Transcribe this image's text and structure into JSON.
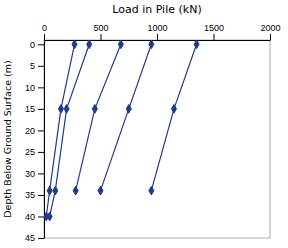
{
  "chart_data": {
    "type": "line",
    "xlabel": "Load in Pile (kN)",
    "ylabel": "Depth Below Ground Surface (m)",
    "xlim": [
      0,
      2000
    ],
    "ylim": [
      45,
      -1
    ],
    "xticks": [
      0,
      500,
      1000,
      1500,
      2000
    ],
    "yticks": [
      0,
      5,
      10,
      15,
      20,
      25,
      30,
      35,
      40,
      45
    ],
    "color": "#1F3A8F",
    "marker": "diamond",
    "grid": false,
    "series": [
      {
        "x": [
          270,
          150,
          50,
          20
        ],
        "values": [
          0,
          15,
          34,
          40
        ]
      },
      {
        "x": [
          400,
          200,
          100,
          50
        ],
        "values": [
          0,
          15,
          34,
          40
        ]
      },
      {
        "x": [
          680,
          450,
          280
        ],
        "values": [
          0,
          15,
          34
        ]
      },
      {
        "x": [
          950,
          750,
          500
        ],
        "values": [
          0,
          15,
          34
        ]
      },
      {
        "x": [
          1350,
          1150,
          950
        ],
        "values": [
          0,
          15,
          34
        ]
      }
    ]
  }
}
